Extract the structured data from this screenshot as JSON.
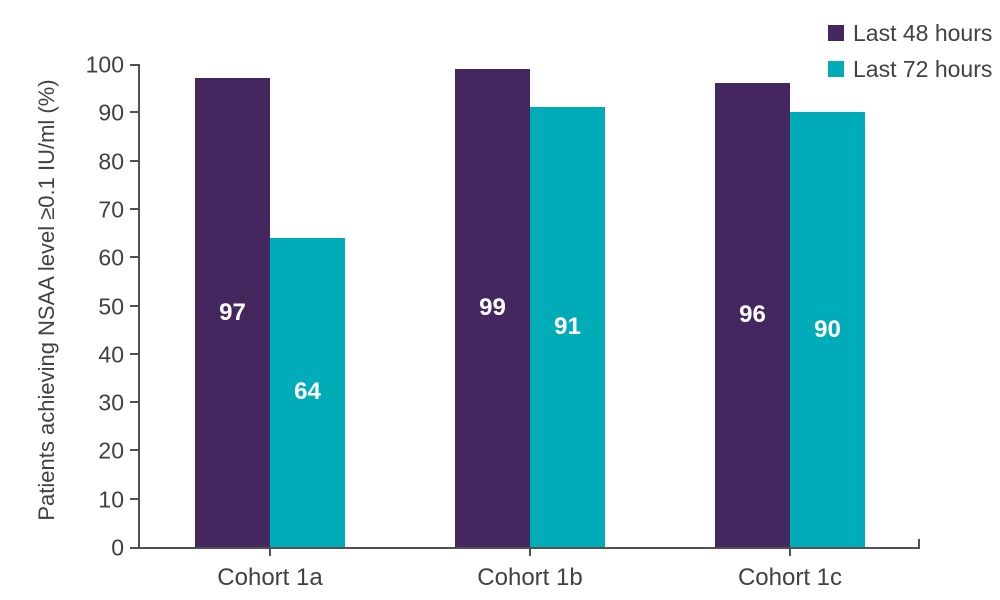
{
  "chart_data": {
    "type": "bar",
    "title": "",
    "categories": [
      "Cohort 1a",
      "Cohort 1b",
      "Cohort 1c"
    ],
    "series": [
      {
        "name": "Last 48 hours",
        "color": "#45275F",
        "values": [
          97,
          99,
          96
        ]
      },
      {
        "name": "Last 72 hours",
        "color": "#00ACB8",
        "values": [
          64,
          91,
          90
        ]
      }
    ],
    "xlabel": "",
    "ylabel": "Patients achieving NSAA level ≥0.1 IU/ml (%)",
    "ylim": [
      0,
      100
    ],
    "yticks": [
      0,
      10,
      20,
      30,
      40,
      50,
      60,
      70,
      80,
      90,
      100
    ],
    "grid": false,
    "legend_position": "top-right",
    "bar_label_color": "#ffffff",
    "axis_color": "#515153",
    "text_color": "#414042"
  }
}
